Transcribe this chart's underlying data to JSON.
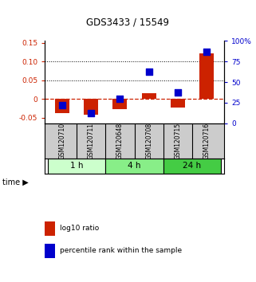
{
  "title": "GDS3433 / 15549",
  "samples": [
    "GSM120710",
    "GSM120711",
    "GSM120648",
    "GSM120708",
    "GSM120715",
    "GSM120716"
  ],
  "log10_ratio": [
    -0.038,
    -0.042,
    -0.028,
    0.015,
    -0.022,
    0.122
  ],
  "percentile_rank": [
    0.22,
    0.12,
    0.3,
    0.63,
    0.38,
    0.87
  ],
  "groups": [
    {
      "label": "1 h",
      "indices": [
        0,
        1
      ],
      "color": "#ccffcc"
    },
    {
      "label": "4 h",
      "indices": [
        2,
        3
      ],
      "color": "#88ee88"
    },
    {
      "label": "24 h",
      "indices": [
        4,
        5
      ],
      "color": "#44cc44"
    }
  ],
  "ylim_left": [
    -0.065,
    0.155
  ],
  "ylim_right": [
    0,
    1.0
  ],
  "yticks_left": [
    -0.05,
    0.0,
    0.05,
    0.1,
    0.15
  ],
  "ytick_labels_left": [
    "-0.05",
    "0",
    "0.05",
    "0.10",
    "0.15"
  ],
  "yticks_right": [
    0,
    0.25,
    0.5,
    0.75,
    1.0
  ],
  "ytick_labels_right": [
    "0",
    "25",
    "50",
    "75",
    "100%"
  ],
  "hlines": [
    0.05,
    0.1
  ],
  "bar_color": "#cc2200",
  "dot_color": "#0000cc",
  "bar_width": 0.5,
  "dot_size": 28,
  "zero_line_color": "#cc2200",
  "background_color": "#ffffff",
  "legend_bar_label": "log10 ratio",
  "legend_dot_label": "percentile rank within the sample",
  "time_label": "time",
  "title_color": "#000000",
  "left_tick_color": "#cc2200",
  "right_tick_color": "#0000cc",
  "label_bg_color": "#cccccc"
}
